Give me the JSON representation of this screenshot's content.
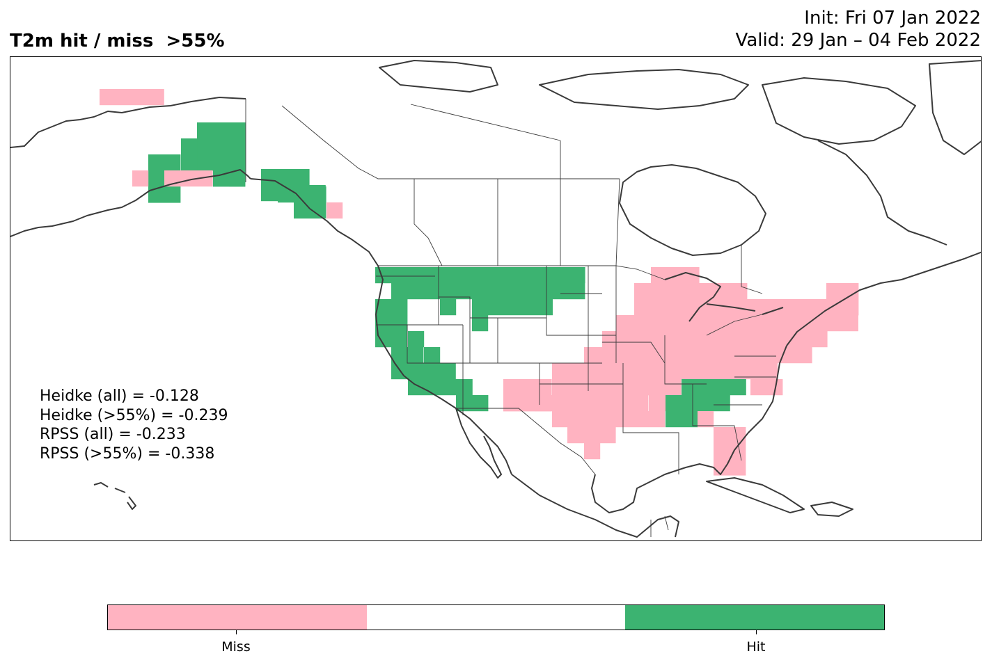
{
  "title": "T2m hit / miss  >55%",
  "init_line": "Init: Fri 07 Jan 2022",
  "valid_line": "Valid: 29 Jan – 04 Feb 2022",
  "scores": [
    "Heidke (all) = -0.128",
    "Heidke (>55%) = -0.239",
    "RPSS (all) = -0.233",
    "RPSS (>55%) = -0.338"
  ],
  "colorbar": {
    "segments": [
      {
        "label": "Miss",
        "color": "#ffb3c1"
      },
      {
        "label": "",
        "color": "#ffffff"
      },
      {
        "label": "Hit",
        "color": "#3cb371"
      }
    ]
  },
  "colors": {
    "miss": "#ffb3c1",
    "hit": "#3cb371",
    "coast": "#3a3a3a"
  },
  "map": {
    "region": "North America",
    "hit_regions": [
      "Alaska interior",
      "Alaska panhandle",
      "Pacific Northwest",
      "California",
      "Northern Rockies",
      "Northern Plains",
      "Arizona",
      "Alabama",
      "Georgia"
    ],
    "miss_regions": [
      "Alaska north coast",
      "Alaska south coast",
      "Texas",
      "Southern Plains",
      "Midwest",
      "Great Lakes",
      "Ohio Valley",
      "Mid-Atlantic",
      "New England",
      "Florida",
      "Mississippi Valley"
    ]
  }
}
